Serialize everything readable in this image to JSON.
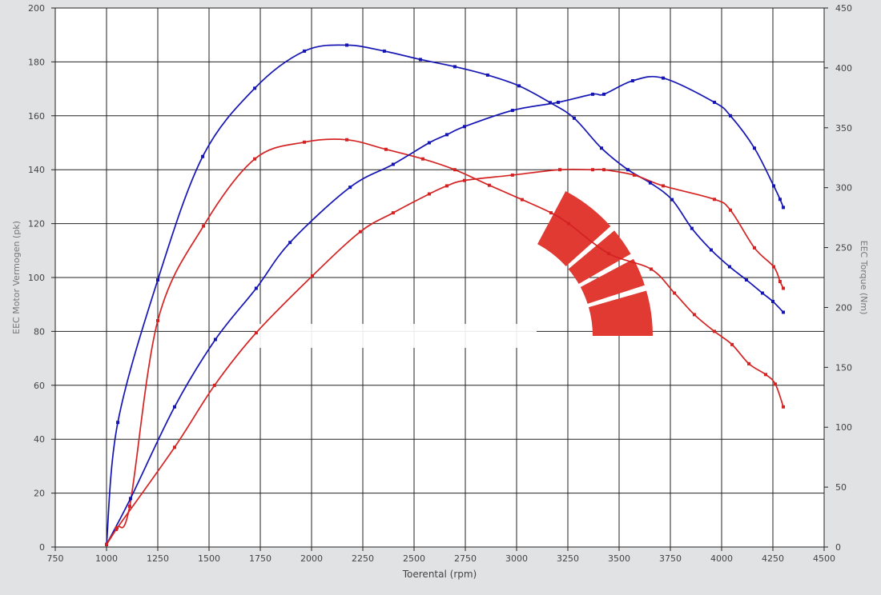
{
  "chart_data": {
    "type": "line",
    "xlabel": "Toerental (rpm)",
    "ylabel_left": "EEC Motor Vermogen (pk)",
    "ylabel_right": "EEC Torque (Nm)",
    "xlim": [
      750,
      4500
    ],
    "ylim_left": [
      0,
      200
    ],
    "ylim_right": [
      0,
      450
    ],
    "x_ticks": [
      750,
      1000,
      1250,
      1500,
      1750,
      2000,
      2250,
      2500,
      2750,
      3000,
      3250,
      3500,
      3750,
      4000,
      4250,
      4500
    ],
    "y_ticks_left": [
      0,
      20,
      40,
      60,
      80,
      100,
      120,
      140,
      160,
      180,
      200
    ],
    "y_ticks_right": [
      0,
      50,
      100,
      150,
      200,
      250,
      300,
      350,
      400,
      450
    ],
    "grid": true,
    "colors": {
      "blue": "#1414b4",
      "red": "#d42222",
      "logo": "#e03a33"
    },
    "series": [
      {
        "color": "blue",
        "axis": "right",
        "x": [
          1000,
          1055,
          1250,
          1469,
          1723,
          1965,
          2172,
          2355,
          2531,
          2699,
          2859,
          3012,
          3164,
          3281,
          3414,
          3543,
          3652,
          3758,
          3855,
          3949,
          4039,
          4121,
          4199,
          4250,
          4301
        ],
        "y": [
          2,
          104,
          223,
          326,
          383,
          414,
          419,
          414,
          407,
          401,
          394,
          385,
          371,
          358,
          333,
          315,
          304,
          290,
          266,
          248,
          234,
          223,
          212,
          205,
          196
        ]
      },
      {
        "color": "red",
        "axis": "right",
        "x": [
          1000,
          1051,
          1113,
          1250,
          1473,
          1723,
          1965,
          2172,
          2363,
          2543,
          2699,
          2867,
          3027,
          3168,
          3254,
          3449,
          3656,
          3770,
          3867,
          3965,
          4051,
          4133,
          4215,
          4262,
          4301
        ],
        "y": [
          2,
          16,
          34,
          189,
          268,
          324,
          338,
          340,
          332,
          324,
          315,
          302,
          290,
          279,
          270,
          245,
          232,
          212,
          194,
          180,
          169,
          153,
          144,
          136,
          117
        ]
      },
      {
        "color": "blue",
        "axis": "left",
        "x": [
          1000,
          1117,
          1332,
          1531,
          1730,
          1895,
          2188,
          2398,
          2574,
          2660,
          2746,
          2980,
          3203,
          3371,
          3426,
          3566,
          3715,
          3965,
          4043,
          4160,
          4254,
          4285,
          4301
        ],
        "y": [
          1,
          18,
          52,
          77,
          96,
          113,
          133.5,
          142,
          150,
          153,
          156,
          162,
          165,
          168,
          168,
          173,
          174,
          165,
          160,
          148,
          134,
          129,
          126
        ]
      },
      {
        "color": "red",
        "axis": "left",
        "x": [
          1000,
          1047,
          1332,
          1527,
          1730,
          2004,
          2238,
          2398,
          2574,
          2660,
          2746,
          2980,
          3211,
          3371,
          3426,
          3574,
          3715,
          3965,
          4043,
          4160,
          4254,
          4285,
          4301
        ],
        "y": [
          1,
          6.5,
          37,
          60,
          79.5,
          100.6,
          117,
          124,
          131,
          134,
          136,
          138,
          140,
          140,
          140,
          138,
          134,
          129,
          125,
          111,
          104,
          98.5,
          96
        ]
      }
    ]
  }
}
